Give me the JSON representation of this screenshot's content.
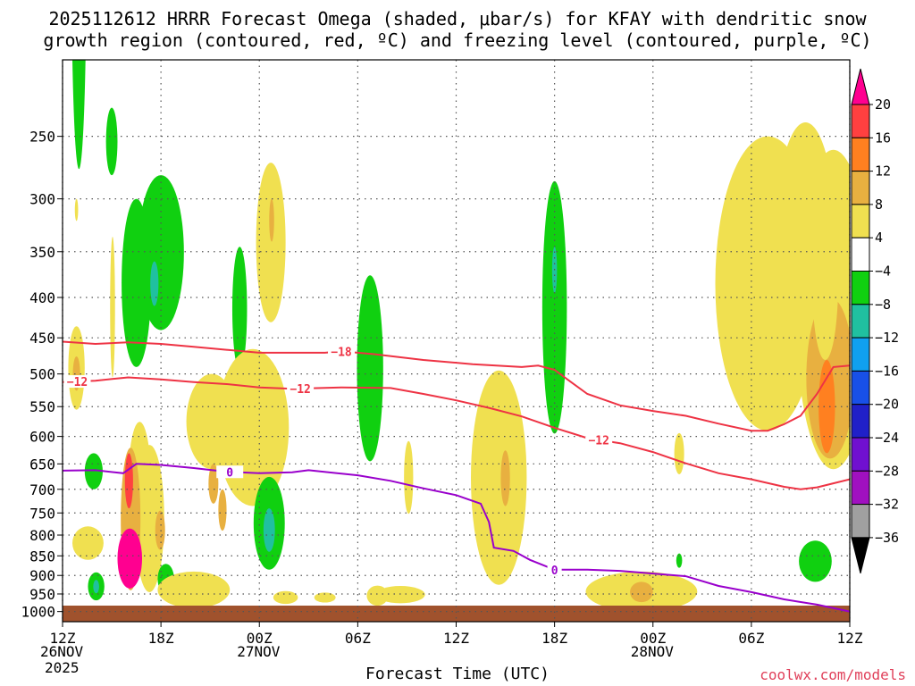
{
  "header": {
    "title_line1": "2025112612 HRRR Forecast Omega (shaded, μbar/s) for KFAY with dendritic snow",
    "title_line2": "growth region (contoured, red, ºC) and freezing level (contoured, purple, ºC)"
  },
  "footer": {
    "xlabel": "Forecast Time (UTC)",
    "credit": "coolwx.com/models"
  },
  "chart_data": {
    "type": "heatmap",
    "variable": "omega",
    "x_hours": [
      0,
      48
    ],
    "x_ticks": [
      {
        "hour": 0,
        "label": "12Z"
      },
      {
        "hour": 6,
        "label": "18Z"
      },
      {
        "hour": 12,
        "label": "00Z"
      },
      {
        "hour": 18,
        "label": "06Z"
      },
      {
        "hour": 24,
        "label": "12Z"
      },
      {
        "hour": 30,
        "label": "18Z"
      },
      {
        "hour": 36,
        "label": "00Z"
      },
      {
        "hour": 42,
        "label": "06Z"
      },
      {
        "hour": 48,
        "label": "12Z"
      }
    ],
    "date_labels": [
      {
        "hour": 0,
        "line1": "26NOV",
        "line2": "2025"
      },
      {
        "hour": 12,
        "line1": "27NOV",
        "line2": ""
      },
      {
        "hour": 36,
        "line1": "28NOV",
        "line2": ""
      }
    ],
    "y_pressure_range": [
      1030,
      200
    ],
    "y_ticks": [
      250,
      300,
      350,
      400,
      450,
      500,
      550,
      600,
      650,
      700,
      750,
      800,
      850,
      900,
      950,
      1000
    ],
    "grid": true,
    "colorbar": {
      "levels": [
        "20",
        "16",
        "12",
        "8",
        "4",
        "−4",
        "−8",
        "−12",
        "−16",
        "−20",
        "−24",
        "−28",
        "−32",
        "−36"
      ],
      "colors": [
        "#ff0090",
        "#ff4040",
        "#ff8020",
        "#e8b040",
        "#f0e050",
        "#ffffff",
        "#10d010",
        "#20c0a0",
        "#10a0f0",
        "#1850e8",
        "#2020c8",
        "#7010d0",
        "#a010c0",
        "#a0a0a0",
        "#000000"
      ]
    },
    "shaded_regions": [
      {
        "h": 1.0,
        "p": 180,
        "dh": 0.45,
        "dp": 95,
        "color": "#10d010"
      },
      {
        "h": 3.0,
        "p": 255,
        "dh": 0.35,
        "dp": 25,
        "color": "#10d010"
      },
      {
        "h": 0.85,
        "p": 310,
        "dh": 0.1,
        "dp": 10,
        "color": "#f0e050"
      },
      {
        "h": 4.5,
        "p": 395,
        "dh": 0.9,
        "dp": 95,
        "color": "#10d010"
      },
      {
        "h": 6.0,
        "p": 360,
        "dh": 1.4,
        "dp": 80,
        "color": "#10d010"
      },
      {
        "h": 5.6,
        "p": 385,
        "dh": 0.25,
        "dp": 25,
        "color": "#20c0a0"
      },
      {
        "h": 3.05,
        "p": 420,
        "dh": 0.15,
        "dp": 85,
        "color": "#f0e050"
      },
      {
        "h": 0.85,
        "p": 495,
        "dh": 0.5,
        "dp": 60,
        "color": "#f0e050"
      },
      {
        "h": 0.85,
        "p": 500,
        "dh": 0.22,
        "dp": 25,
        "color": "#e8b040"
      },
      {
        "h": 1.9,
        "p": 665,
        "dh": 0.55,
        "dp": 35,
        "color": "#10d010"
      },
      {
        "h": 12.7,
        "p": 350,
        "dh": 0.9,
        "dp": 80,
        "color": "#f0e050"
      },
      {
        "h": 12.75,
        "p": 320,
        "dh": 0.15,
        "dp": 20,
        "color": "#e8b040"
      },
      {
        "h": 10.8,
        "p": 420,
        "dh": 0.45,
        "dp": 75,
        "color": "#10d010"
      },
      {
        "h": 9.1,
        "p": 580,
        "dh": 1.55,
        "dp": 80,
        "color": "#f0e050"
      },
      {
        "h": 11.6,
        "p": 600,
        "dh": 2.2,
        "dp": 135,
        "color": "#f0e050"
      },
      {
        "h": 4.7,
        "p": 700,
        "dh": 0.7,
        "dp": 125,
        "color": "#f0e050"
      },
      {
        "h": 5.3,
        "p": 780,
        "dh": 0.9,
        "dp": 165,
        "color": "#f0e050"
      },
      {
        "h": 4.15,
        "p": 780,
        "dh": 0.6,
        "dp": 160,
        "color": "#e8b040"
      },
      {
        "h": 4.05,
        "p": 685,
        "dh": 0.25,
        "dp": 55,
        "color": "#ff4040"
      },
      {
        "h": 4.1,
        "p": 860,
        "dh": 0.75,
        "dp": 75,
        "color": "#ff0090"
      },
      {
        "h": 5.95,
        "p": 790,
        "dh": 0.3,
        "dp": 45,
        "color": "#e8b040"
      },
      {
        "h": 6.3,
        "p": 910,
        "dh": 0.5,
        "dp": 40,
        "color": "#10d010"
      },
      {
        "h": 9.2,
        "p": 690,
        "dh": 0.3,
        "dp": 40,
        "color": "#e8b040"
      },
      {
        "h": 9.75,
        "p": 745,
        "dh": 0.25,
        "dp": 45,
        "color": "#e8b040"
      },
      {
        "h": 8.0,
        "p": 940,
        "dh": 2.2,
        "dp": 50,
        "color": "#f0e050"
      },
      {
        "h": 12.6,
        "p": 780,
        "dh": 0.95,
        "dp": 105,
        "color": "#10d010"
      },
      {
        "h": 12.6,
        "p": 790,
        "dh": 0.35,
        "dp": 50,
        "color": "#20c0a0"
      },
      {
        "h": 1.55,
        "p": 820,
        "dh": 0.95,
        "dp": 40,
        "color": "#f0e050"
      },
      {
        "h": 2.05,
        "p": 930,
        "dh": 0.5,
        "dp": 38,
        "color": "#10d010"
      },
      {
        "h": 2.05,
        "p": 930,
        "dh": 0.18,
        "dp": 18,
        "color": "#20c0a0"
      },
      {
        "h": 18.75,
        "p": 510,
        "dh": 0.8,
        "dp": 135,
        "color": "#10d010"
      },
      {
        "h": 21.1,
        "p": 680,
        "dh": 0.28,
        "dp": 72,
        "color": "#f0e050"
      },
      {
        "h": 13.6,
        "p": 960,
        "dh": 0.75,
        "dp": 18,
        "color": "#f0e050"
      },
      {
        "h": 16.0,
        "p": 960,
        "dh": 0.65,
        "dp": 14,
        "color": "#f0e050"
      },
      {
        "h": 19.2,
        "p": 955,
        "dh": 0.65,
        "dp": 28,
        "color": "#f0e050"
      },
      {
        "h": 20.6,
        "p": 952,
        "dh": 1.5,
        "dp": 24,
        "color": "#f0e050"
      },
      {
        "h": 26.6,
        "p": 710,
        "dh": 1.7,
        "dp": 215,
        "color": "#f0e050"
      },
      {
        "h": 27.0,
        "p": 680,
        "dh": 0.28,
        "dp": 55,
        "color": "#e8b040"
      },
      {
        "h": 30.0,
        "p": 440,
        "dh": 0.75,
        "dp": 155,
        "color": "#10d010"
      },
      {
        "h": 30.0,
        "p": 370,
        "dh": 0.15,
        "dp": 25,
        "color": "#20c0a0"
      },
      {
        "h": 35.3,
        "p": 945,
        "dh": 3.4,
        "dp": 55,
        "color": "#f0e050"
      },
      {
        "h": 35.3,
        "p": 945,
        "dh": 0.7,
        "dp": 28,
        "color": "#e8b040"
      },
      {
        "h": 37.6,
        "p": 632,
        "dh": 0.3,
        "dp": 38,
        "color": "#f0e050"
      },
      {
        "h": 37.6,
        "p": 862,
        "dh": 0.18,
        "dp": 18,
        "color": "#10d010"
      },
      {
        "h": 43.0,
        "p": 420,
        "dh": 3.2,
        "dp": 170,
        "color": "#f0e050"
      },
      {
        "h": 45.3,
        "p": 350,
        "dh": 1.8,
        "dp": 110,
        "color": "#f0e050"
      },
      {
        "h": 47.0,
        "p": 460,
        "dh": 2.3,
        "dp": 200,
        "color": "#f0e050"
      },
      {
        "h": 46.8,
        "p": 520,
        "dh": 1.45,
        "dp": 120,
        "color": "#e8b040"
      },
      {
        "h": 46.5,
        "p": 390,
        "dh": 0.8,
        "dp": 90,
        "color": "#f0e050"
      },
      {
        "h": 46.6,
        "p": 555,
        "dh": 0.5,
        "dp": 75,
        "color": "#ff8020"
      },
      {
        "h": 45.9,
        "p": 865,
        "dh": 1.0,
        "dp": 52,
        "color": "#10d010"
      }
    ],
    "contour_lines": [
      {
        "name": "-18",
        "color": "#ee3344",
        "label": "−18",
        "label_hour": 17.0,
        "points": [
          [
            0,
            455
          ],
          [
            2,
            458
          ],
          [
            4,
            456
          ],
          [
            6,
            458
          ],
          [
            8,
            462
          ],
          [
            10,
            466
          ],
          [
            12,
            470
          ],
          [
            14,
            470
          ],
          [
            16,
            470
          ],
          [
            17,
            468
          ],
          [
            19,
            472
          ],
          [
            22,
            480
          ],
          [
            25,
            486
          ],
          [
            28,
            490
          ],
          [
            29,
            488
          ],
          [
            30,
            494
          ],
          [
            31,
            512
          ],
          [
            32,
            530
          ],
          [
            34,
            548
          ],
          [
            36,
            557
          ],
          [
            38,
            565
          ],
          [
            40,
            578
          ],
          [
            42,
            590
          ],
          [
            43,
            590
          ],
          [
            44,
            579
          ],
          [
            45,
            565
          ],
          [
            46,
            530
          ],
          [
            47,
            490
          ],
          [
            48,
            488
          ]
        ]
      },
      {
        "name": "-12",
        "color": "#ee3344",
        "label": "−12",
        "label_hour": 14.5,
        "points": [
          [
            0,
            512
          ],
          [
            2,
            510
          ],
          [
            4,
            505
          ],
          [
            6,
            508
          ],
          [
            8,
            512
          ],
          [
            10,
            515
          ],
          [
            12,
            520
          ],
          [
            14,
            522
          ],
          [
            17,
            520
          ],
          [
            20,
            521
          ],
          [
            22,
            530
          ],
          [
            24,
            540
          ],
          [
            26,
            552
          ],
          [
            28,
            566
          ],
          [
            30,
            585
          ],
          [
            32,
            603
          ],
          [
            34,
            612
          ],
          [
            36,
            628
          ],
          [
            38,
            649
          ],
          [
            40,
            668
          ],
          [
            42,
            680
          ],
          [
            44,
            695
          ],
          [
            45,
            700
          ],
          [
            46,
            696
          ],
          [
            47,
            688
          ],
          [
            48,
            680
          ]
        ]
      },
      {
        "name": "0",
        "color": "#9900cc",
        "label": "0",
        "label_hour": 10.2,
        "points": [
          [
            0,
            663
          ],
          [
            2,
            662
          ],
          [
            3.7,
            668
          ],
          [
            4.5,
            650
          ],
          [
            6,
            652
          ],
          [
            8,
            658
          ],
          [
            10,
            665
          ],
          [
            12,
            668
          ],
          [
            14,
            666
          ],
          [
            15,
            662
          ],
          [
            18,
            672
          ],
          [
            20,
            683
          ],
          [
            22,
            698
          ],
          [
            24,
            712
          ],
          [
            25.5,
            730
          ],
          [
            26,
            770
          ],
          [
            26.3,
            830
          ],
          [
            27.5,
            838
          ],
          [
            28.5,
            860
          ],
          [
            30,
            885
          ],
          [
            32,
            885
          ],
          [
            34,
            888
          ],
          [
            36,
            895
          ],
          [
            38,
            902
          ],
          [
            40,
            928
          ],
          [
            42,
            945
          ],
          [
            44,
            965
          ],
          [
            46,
            980
          ],
          [
            48,
            1000
          ]
        ]
      }
    ],
    "ground_color": "#a0522d"
  }
}
